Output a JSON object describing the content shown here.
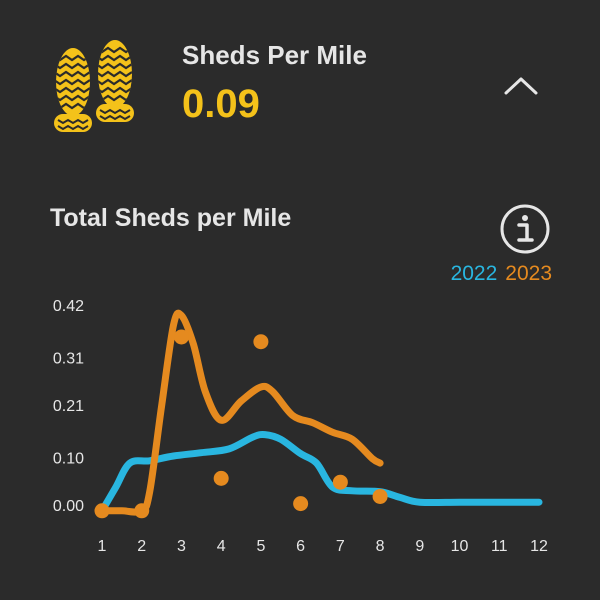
{
  "metric": {
    "label": "Sheds Per Mile",
    "value": "0.09",
    "icon": "footprints-icon",
    "collapse_icon": "chevron-up-icon"
  },
  "chart_section": {
    "title": "Total Sheds per Mile",
    "info_icon": "info-icon"
  },
  "colors": {
    "background": "#2b2b2b",
    "accent": "#f4c21a",
    "series_2022": "#29b6e0",
    "series_2023": "#e58a1f"
  },
  "chart_data": {
    "type": "line",
    "title": "Total Sheds per Mile",
    "xlabel": "",
    "ylabel": "",
    "x": [
      1,
      2,
      3,
      4,
      5,
      6,
      7,
      8,
      9,
      10,
      11,
      12
    ],
    "xlim": [
      1,
      12
    ],
    "ylim": [
      -0.01,
      0.42
    ],
    "y_ticks": [
      "0.00",
      "0.10",
      "0.21",
      "0.31",
      "0.42"
    ],
    "y_tick_values": [
      0.0,
      0.1,
      0.21,
      0.31,
      0.42
    ],
    "x_ticks": [
      "1",
      "2",
      "3",
      "4",
      "5",
      "6",
      "7",
      "8",
      "9",
      "10",
      "11",
      "12"
    ],
    "legend": {
      "position": "top-right",
      "entries": [
        "2022",
        "2023"
      ]
    },
    "series": [
      {
        "name": "2022",
        "color": "#29b6e0",
        "line": [
          [
            1.0,
            -0.01
          ],
          [
            1.35,
            0.04
          ],
          [
            1.7,
            0.09
          ],
          [
            2.2,
            0.095
          ],
          [
            2.8,
            0.105
          ],
          [
            3.5,
            0.112
          ],
          [
            4.2,
            0.12
          ],
          [
            4.8,
            0.145
          ],
          [
            5.1,
            0.15
          ],
          [
            5.5,
            0.14
          ],
          [
            6.0,
            0.11
          ],
          [
            6.4,
            0.09
          ],
          [
            6.8,
            0.04
          ],
          [
            7.3,
            0.032
          ],
          [
            8.0,
            0.03
          ],
          [
            8.5,
            0.018
          ],
          [
            9.0,
            0.008
          ],
          [
            10.0,
            0.008
          ],
          [
            11.0,
            0.008
          ],
          [
            12.0,
            0.008
          ]
        ]
      },
      {
        "name": "2023",
        "color": "#e58a1f",
        "line": [
          [
            1.0,
            -0.01
          ],
          [
            1.5,
            -0.01
          ],
          [
            2.0,
            -0.01
          ],
          [
            2.2,
            0.03
          ],
          [
            2.5,
            0.21
          ],
          [
            2.8,
            0.38
          ],
          [
            3.0,
            0.4
          ],
          [
            3.3,
            0.34
          ],
          [
            3.6,
            0.24
          ],
          [
            4.0,
            0.18
          ],
          [
            4.5,
            0.22
          ],
          [
            5.0,
            0.25
          ],
          [
            5.3,
            0.24
          ],
          [
            5.8,
            0.19
          ],
          [
            6.3,
            0.175
          ],
          [
            6.8,
            0.155
          ],
          [
            7.3,
            0.14
          ],
          [
            7.8,
            0.1
          ],
          [
            8.0,
            0.09
          ]
        ],
        "points": [
          [
            1,
            -0.01
          ],
          [
            2,
            -0.01
          ],
          [
            3,
            0.355
          ],
          [
            4,
            0.058
          ],
          [
            5,
            0.345
          ],
          [
            6,
            0.005
          ],
          [
            7,
            0.05
          ],
          [
            8,
            0.02
          ]
        ]
      }
    ]
  }
}
